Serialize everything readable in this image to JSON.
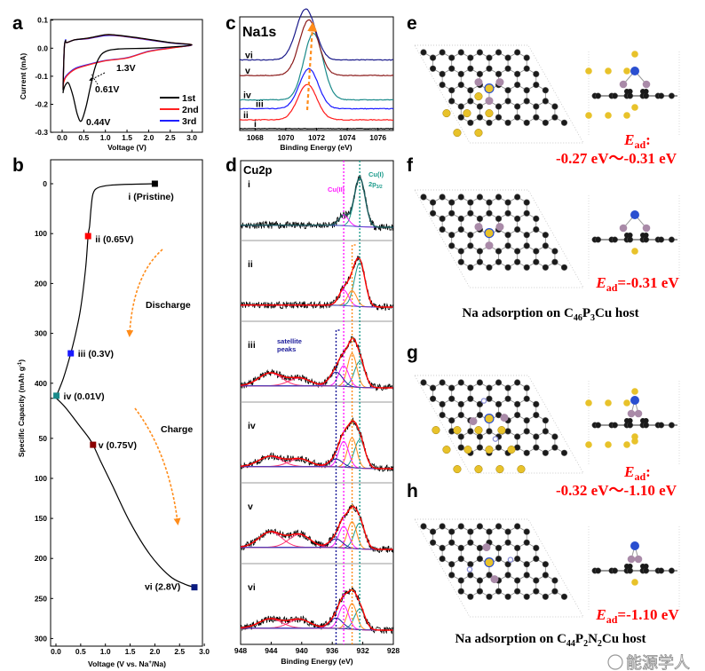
{
  "panels": {
    "a": "a",
    "b": "b",
    "c": "c",
    "d": "d",
    "e": "e",
    "f": "f",
    "g": "g",
    "h": "h"
  },
  "colors": {
    "first": "#000000",
    "second": "#ff2020",
    "third": "#2020ff",
    "arrow": "#ff8c1a",
    "ead": "#ff0000",
    "carbon": "#1a1a1a",
    "phosphorus": "#a98aa8",
    "copper": "#e8c22a",
    "sodium_blue": "#2a4fd0",
    "nitrogen": "#8c90d8"
  },
  "chart_data": [
    {
      "panel": "a",
      "type": "line",
      "xlabel": "Voltage (V)",
      "ylabel": "Current (mA)",
      "xlim": [
        -0.2,
        3.1
      ],
      "ylim": [
        -0.3,
        0.1
      ],
      "xticks": [
        "0.0",
        "0.5",
        "1.0",
        "1.5",
        "2.0",
        "2.5",
        "3.0"
      ],
      "yticks": [
        "0.1",
        "0.0",
        "-0.1",
        "-0.2",
        "-0.3"
      ],
      "legend_position": "bottom-right",
      "annotations": [
        "1.3V",
        "0.61V",
        "0.44V"
      ],
      "series": [
        {
          "name": "1st",
          "color": "#000000",
          "x": [
            0.02,
            0.05,
            0.08,
            0.1,
            0.3,
            0.6,
            1.0,
            1.3,
            1.8,
            2.5,
            3.0,
            2.5,
            2.0,
            1.3,
            1.0,
            0.85,
            0.75,
            0.65,
            0.55,
            0.44,
            0.35,
            0.25,
            0.15,
            0.08,
            0.03,
            0.02
          ],
          "y": [
            -0.15,
            0.0,
            0.027,
            0.02,
            0.03,
            0.036,
            0.048,
            0.046,
            0.036,
            0.02,
            0.012,
            0.004,
            0.0,
            -0.003,
            -0.012,
            -0.035,
            -0.075,
            -0.14,
            -0.21,
            -0.26,
            -0.235,
            -0.17,
            -0.125,
            -0.13,
            -0.15,
            -0.16
          ]
        },
        {
          "name": "2nd",
          "color": "#ff2020",
          "x": [
            0.02,
            0.05,
            0.08,
            0.1,
            0.3,
            0.6,
            1.0,
            1.3,
            1.8,
            2.5,
            3.0,
            2.5,
            2.0,
            1.5,
            1.0,
            0.6,
            0.3,
            0.1,
            0.04,
            0.02
          ],
          "y": [
            -0.14,
            0.0,
            0.026,
            0.02,
            0.03,
            0.035,
            0.047,
            0.045,
            0.035,
            0.02,
            0.012,
            0.0,
            -0.012,
            -0.035,
            -0.045,
            -0.06,
            -0.075,
            -0.1,
            -0.12,
            -0.14
          ]
        },
        {
          "name": "3rd",
          "color": "#2020ff",
          "x": [
            0.02,
            0.05,
            0.08,
            0.1,
            0.3,
            0.6,
            1.0,
            1.3,
            1.8,
            2.5,
            3.0,
            2.5,
            2.0,
            1.5,
            1.0,
            0.6,
            0.3,
            0.1,
            0.04,
            0.02
          ],
          "y": [
            -0.13,
            0.0,
            0.03,
            0.02,
            0.03,
            0.034,
            0.045,
            0.044,
            0.034,
            0.019,
            0.011,
            0.001,
            -0.011,
            -0.034,
            -0.044,
            -0.058,
            -0.072,
            -0.097,
            -0.115,
            -0.13
          ]
        }
      ]
    },
    {
      "panel": "b",
      "type": "line",
      "xlabel": "Voltage (V vs. Na+/Na)",
      "xlabel_parts": [
        "Voltage (V vs. Na",
        "+",
        "/Na)"
      ],
      "ylabel": "Specific Capacity (mAh g-1)",
      "ylabel_parts": [
        "Specific Capacity (mAh g",
        "-1",
        ")"
      ],
      "xlim": [
        -0.2,
        3.0
      ],
      "xticks": [
        "0.0",
        "0.5",
        "1.0",
        "1.5",
        "2.0",
        "2.5",
        "3.0"
      ],
      "yticks_discharge": [
        "0",
        "100",
        "200",
        "300",
        "400"
      ],
      "yticks_charge": [
        "50",
        "100",
        "150",
        "200",
        "250",
        "300"
      ],
      "process_labels": [
        "Discharge",
        "Charge"
      ],
      "discharge_curve": {
        "voltage": [
          2.0,
          1.5,
          1.1,
          0.85,
          0.75,
          0.71,
          0.68,
          0.65,
          0.6,
          0.5,
          0.4,
          0.3,
          0.15,
          0.01
        ],
        "capacity": [
          0,
          1,
          3,
          8,
          20,
          50,
          85,
          105,
          170,
          250,
          300,
          340,
          390,
          425
        ]
      },
      "charge_curve": {
        "voltage": [
          0.01,
          0.2,
          0.45,
          0.65,
          0.75,
          0.9,
          1.15,
          1.5,
          1.9,
          2.3,
          2.6,
          2.8
        ],
        "capacity": [
          0,
          12,
          32,
          48,
          58,
          78,
          110,
          155,
          195,
          222,
          232,
          236
        ]
      },
      "points": [
        {
          "label": "i (Pristine)",
          "voltage": 2.0,
          "capacity": 0,
          "segment": "discharge",
          "color": "#000000"
        },
        {
          "label": "ii (0.65V)",
          "voltage": 0.65,
          "capacity": 105,
          "segment": "discharge",
          "color": "#ff0000"
        },
        {
          "label": "iii (0.3V)",
          "voltage": 0.3,
          "capacity": 340,
          "segment": "discharge",
          "color": "#1a1aff"
        },
        {
          "label": "iv (0.01V)",
          "voltage": 0.01,
          "capacity": 425,
          "segment": "discharge",
          "color": "#1a8a8a"
        },
        {
          "label": "v (0.75V)",
          "voltage": 0.75,
          "capacity": 58,
          "segment": "charge",
          "color": "#8b0000"
        },
        {
          "label": "vi (2.8V)",
          "voltage": 2.8,
          "capacity": 236,
          "segment": "charge",
          "color": "#0a1a80"
        }
      ]
    },
    {
      "panel": "c",
      "type": "line",
      "title": "Na1s",
      "xlabel": "Binding Energy (eV)",
      "xlim": [
        1067,
        1077
      ],
      "xticks": [
        "1068",
        "1070",
        "1072",
        "1074",
        "1076"
      ],
      "series": [
        {
          "name": "i",
          "color": "#000000",
          "peak_eV": null,
          "offset": 0.0,
          "height": 0.0
        },
        {
          "name": "ii",
          "color": "#ff1a1a",
          "peak_eV": 1071.4,
          "offset": 0.08,
          "height": 0.32
        },
        {
          "name": "iii",
          "color": "#1a1aff",
          "peak_eV": 1071.5,
          "offset": 0.18,
          "height": 0.36
        },
        {
          "name": "iv",
          "color": "#1a8a8a",
          "peak_eV": 1071.8,
          "offset": 0.26,
          "height": 0.6
        },
        {
          "name": "v",
          "color": "#8b1a1a",
          "peak_eV": 1071.5,
          "offset": 0.48,
          "height": 0.5
        },
        {
          "name": "vi",
          "color": "#1a1a8a",
          "peak_eV": 1071.3,
          "offset": 0.62,
          "height": 0.46
        }
      ]
    },
    {
      "panel": "d",
      "type": "line",
      "title": "Cu2p",
      "xlabel": "Binding Energy (eV)",
      "xlim": [
        948,
        928
      ],
      "xticks": [
        "948",
        "944",
        "940",
        "936",
        "932",
        "928"
      ],
      "peak_labels": {
        "cu2": "Cu(II)",
        "cu1": "Cu(I)",
        "cu1_orbital": "2p",
        "cu1_orbital_sub": "3/2",
        "satellite": [
          "satellite",
          "peaks"
        ]
      },
      "reference_lines_eV": {
        "cu1": 932.4,
        "orange": 933.4,
        "cu2": 934.5,
        "satellite": 935.5
      },
      "component_colors": {
        "cu1": "#1a9a8a",
        "orange": "#ff8c1a",
        "cu2": "#ff1aff",
        "satellite": "#1a1a9a",
        "broad": "#ff3070",
        "envelope": "#ff0000",
        "data": "#000000"
      },
      "spectra": [
        {
          "name": "i",
          "cu1": 0.95,
          "orange": 0.0,
          "cu2": 0.2,
          "satellite": 0.0,
          "sat944": 0.0,
          "sat940": 0.0
        },
        {
          "name": "ii",
          "cu1": 0.85,
          "orange": 0.3,
          "cu2": 0.3,
          "satellite": 0.0,
          "sat944": 0.0,
          "sat940": 0.0
        },
        {
          "name": "iii",
          "cu1": 0.5,
          "orange": 0.65,
          "cu2": 0.4,
          "satellite": 0.27,
          "sat944": 0.25,
          "sat940": 0.15
        },
        {
          "name": "iv",
          "cu1": 0.55,
          "orange": 0.58,
          "cu2": 0.5,
          "satellite": 0.15,
          "sat944": 0.2,
          "sat940": 0.15
        },
        {
          "name": "v",
          "cu1": 0.5,
          "orange": 0.52,
          "cu2": 0.42,
          "satellite": 0.17,
          "sat944": 0.3,
          "sat940": 0.25
        },
        {
          "name": "vi",
          "cu1": 0.4,
          "orange": 0.5,
          "cu2": 0.45,
          "satellite": 0.2,
          "sat944": 0.18,
          "sat940": 0.17
        }
      ]
    }
  ],
  "adsorption": {
    "ead_symbol": "E",
    "ead_sub": "ad",
    "e": {
      "ead_suffix": ":",
      "range": "-0.27 eV～-0.31 eV"
    },
    "f": {
      "ead_suffix": "=-0.31 eV"
    },
    "g": {
      "ead_suffix": ":",
      "range": "-0.32 eV～-1.10 eV"
    },
    "h": {
      "ead_suffix": "=-1.10 eV"
    },
    "caption_top": [
      "Na adsorption on C",
      "46",
      "P",
      "3",
      "Cu host"
    ],
    "caption_bottom": [
      "Na adsorption on C",
      "44",
      "P",
      "2",
      "N",
      "2",
      "Cu host"
    ]
  },
  "watermark": "能源学人"
}
